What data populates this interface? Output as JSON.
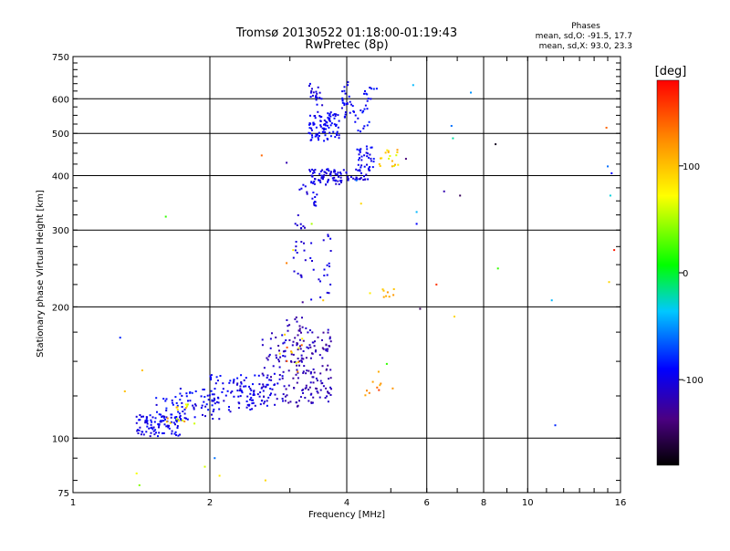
{
  "chart_data": {
    "type": "scatter",
    "title": "Tromsø 20130522 01:18:00-01:19:43",
    "subtitle": "RwPretec (8p)",
    "stats": {
      "heading": "Phases",
      "line_o": "mean, sd,O: -91.5, 17.7",
      "line_x": "mean, sd,X:  93.0, 23.3"
    },
    "xlabel": "Frequency [MHz]",
    "ylabel": "Stationary phase Virtual Height [km]",
    "x_scale": "log2",
    "y_scale": "log",
    "xlim": [
      1,
      16
    ],
    "ylim": [
      75,
      750
    ],
    "x_ticks": [
      1,
      2,
      4,
      6,
      8,
      10,
      16
    ],
    "x_tick_labels": [
      "1",
      "2",
      "4",
      "6",
      "8",
      "10",
      "16"
    ],
    "y_ticks": [
      75,
      100,
      200,
      300,
      400,
      500,
      600,
      750
    ],
    "y_tick_labels": [
      "75",
      "100",
      "200",
      "300",
      "400",
      "500",
      "600",
      "750"
    ],
    "x_gridlines": [
      2,
      4,
      6,
      8,
      10
    ],
    "y_gridlines": [
      100,
      200,
      300,
      400,
      500,
      600
    ],
    "grid": true,
    "colorbar": {
      "label": "[deg]",
      "range": [
        -180,
        180
      ],
      "ticks": [
        100,
        0,
        -100
      ],
      "tick_labels": [
        "100",
        "0",
        "-100"
      ]
    },
    "clusters": [
      {
        "f": [
          1.38,
          1.72
        ],
        "h": [
          101,
          113
        ],
        "phase": [
          -110,
          -85
        ],
        "n": 90
      },
      {
        "f": [
          1.5,
          1.75
        ],
        "h": [
          110,
          125
        ],
        "phase": [
          -105,
          -80
        ],
        "n": 30
      },
      {
        "f": [
          1.6,
          1.8
        ],
        "h": [
          108,
          120
        ],
        "phase": [
          50,
          130
        ],
        "n": 14
      },
      {
        "f": [
          1.72,
          2.1
        ],
        "h": [
          110,
          130
        ],
        "phase": [
          -110,
          -80
        ],
        "n": 50
      },
      {
        "f": [
          2.0,
          2.5
        ],
        "h": [
          115,
          140
        ],
        "phase": [
          -110,
          -85
        ],
        "n": 70
      },
      {
        "f": [
          2.45,
          2.8
        ],
        "h": [
          118,
          140
        ],
        "phase": [
          -110,
          -85
        ],
        "n": 35
      },
      {
        "f": [
          2.6,
          2.95
        ],
        "h": [
          120,
          175
        ],
        "phase": [
          -125,
          -95
        ],
        "n": 60
      },
      {
        "f": [
          2.95,
          3.25
        ],
        "h": [
          118,
          190
        ],
        "phase": [
          -130,
          -110
        ],
        "n": 70
      },
      {
        "f": [
          3.25,
          3.7
        ],
        "h": [
          120,
          180
        ],
        "phase": [
          -130,
          -105
        ],
        "n": 90
      },
      {
        "f": [
          2.85,
          3.2
        ],
        "h": [
          140,
          175
        ],
        "phase": [
          60,
          150
        ],
        "n": 12
      },
      {
        "f": [
          3.05,
          3.25
        ],
        "h": [
          220,
          330
        ],
        "phase": [
          -115,
          -100
        ],
        "n": 22
      },
      {
        "f": [
          3.3,
          3.7
        ],
        "h": [
          205,
          300
        ],
        "phase": [
          -110,
          -95
        ],
        "n": 22
      },
      {
        "f": [
          3.15,
          3.45
        ],
        "h": [
          340,
          400
        ],
        "phase": [
          -110,
          -90
        ],
        "n": 20
      },
      {
        "f": [
          3.3,
          3.95
        ],
        "h": [
          380,
          415
        ],
        "phase": [
          -110,
          -90
        ],
        "n": 70
      },
      {
        "f": [
          3.95,
          4.5
        ],
        "h": [
          390,
          415
        ],
        "phase": [
          -110,
          -90
        ],
        "n": 25
      },
      {
        "f": [
          4.2,
          4.6
        ],
        "h": [
          410,
          470
        ],
        "phase": [
          -105,
          -85
        ],
        "n": 35
      },
      {
        "f": [
          3.3,
          3.85
        ],
        "h": [
          480,
          560
        ],
        "phase": [
          -105,
          -85
        ],
        "n": 90
      },
      {
        "f": [
          3.3,
          3.55
        ],
        "h": [
          580,
          650
        ],
        "phase": [
          -110,
          -90
        ],
        "n": 20
      },
      {
        "f": [
          3.9,
          4.1
        ],
        "h": [
          540,
          660
        ],
        "phase": [
          -105,
          -85
        ],
        "n": 25
      },
      {
        "f": [
          4.1,
          4.55
        ],
        "h": [
          500,
          600
        ],
        "phase": [
          -100,
          -80
        ],
        "n": 20
      },
      {
        "f": [
          4.3,
          4.7
        ],
        "h": [
          600,
          640
        ],
        "phase": [
          -100,
          -80
        ],
        "n": 10
      },
      {
        "f": [
          4.7,
          5.2
        ],
        "h": [
          420,
          460
        ],
        "phase": [
          60,
          120
        ],
        "n": 18
      },
      {
        "f": [
          4.8,
          5.1
        ],
        "h": [
          210,
          220
        ],
        "phase": [
          80,
          120
        ],
        "n": 8
      },
      {
        "f": [
          4.35,
          4.8
        ],
        "h": [
          125,
          135
        ],
        "phase": [
          100,
          170
        ],
        "n": 8
      }
    ],
    "points": [
      {
        "f": 1.27,
        "h": 170,
        "phase": -80
      },
      {
        "f": 1.3,
        "h": 128,
        "phase": 100
      },
      {
        "f": 1.42,
        "h": 143,
        "phase": 100
      },
      {
        "f": 1.38,
        "h": 83,
        "phase": 70
      },
      {
        "f": 1.4,
        "h": 78,
        "phase": 40
      },
      {
        "f": 1.6,
        "h": 322,
        "phase": 20
      },
      {
        "f": 1.85,
        "h": 108,
        "phase": 60
      },
      {
        "f": 1.95,
        "h": 86,
        "phase": 60
      },
      {
        "f": 2.05,
        "h": 90,
        "phase": -60
      },
      {
        "f": 2.1,
        "h": 82,
        "phase": 80
      },
      {
        "f": 2.6,
        "h": 445,
        "phase": 140
      },
      {
        "f": 2.65,
        "h": 80,
        "phase": 90
      },
      {
        "f": 2.95,
        "h": 428,
        "phase": -120
      },
      {
        "f": 3.2,
        "h": 205,
        "phase": -130
      },
      {
        "f": 3.05,
        "h": 270,
        "phase": 80
      },
      {
        "f": 2.95,
        "h": 252,
        "phase": 130
      },
      {
        "f": 3.55,
        "h": 207,
        "phase": 100
      },
      {
        "f": 3.35,
        "h": 310,
        "phase": 50
      },
      {
        "f": 4.2,
        "h": 390,
        "phase": -60
      },
      {
        "f": 4.3,
        "h": 345,
        "phase": 90
      },
      {
        "f": 4.5,
        "h": 215,
        "phase": 80
      },
      {
        "f": 4.7,
        "h": 142,
        "phase": 110
      },
      {
        "f": 4.9,
        "h": 148,
        "phase": 20
      },
      {
        "f": 5.05,
        "h": 130,
        "phase": 120
      },
      {
        "f": 5.4,
        "h": 437,
        "phase": -140
      },
      {
        "f": 5.6,
        "h": 645,
        "phase": -40
      },
      {
        "f": 5.7,
        "h": 310,
        "phase": -90
      },
      {
        "f": 5.8,
        "h": 198,
        "phase": -150
      },
      {
        "f": 5.7,
        "h": 330,
        "phase": -40
      },
      {
        "f": 6.3,
        "h": 225,
        "phase": 160
      },
      {
        "f": 6.55,
        "h": 368,
        "phase": -120
      },
      {
        "f": 6.8,
        "h": 520,
        "phase": -60
      },
      {
        "f": 6.85,
        "h": 487,
        "phase": -20
      },
      {
        "f": 6.9,
        "h": 190,
        "phase": 90
      },
      {
        "f": 7.1,
        "h": 360,
        "phase": -150
      },
      {
        "f": 7.5,
        "h": 620,
        "phase": -50
      },
      {
        "f": 8.5,
        "h": 472,
        "phase": -170
      },
      {
        "f": 8.6,
        "h": 245,
        "phase": 20
      },
      {
        "f": 11.3,
        "h": 207,
        "phase": -40
      },
      {
        "f": 11.5,
        "h": 107,
        "phase": -80
      },
      {
        "f": 14.9,
        "h": 515,
        "phase": 140
      },
      {
        "f": 15.0,
        "h": 420,
        "phase": -60
      },
      {
        "f": 15.2,
        "h": 360,
        "phase": -30
      },
      {
        "f": 15.3,
        "h": 405,
        "phase": -90
      },
      {
        "f": 15.1,
        "h": 228,
        "phase": 90
      },
      {
        "f": 15.5,
        "h": 270,
        "phase": 170
      }
    ]
  }
}
